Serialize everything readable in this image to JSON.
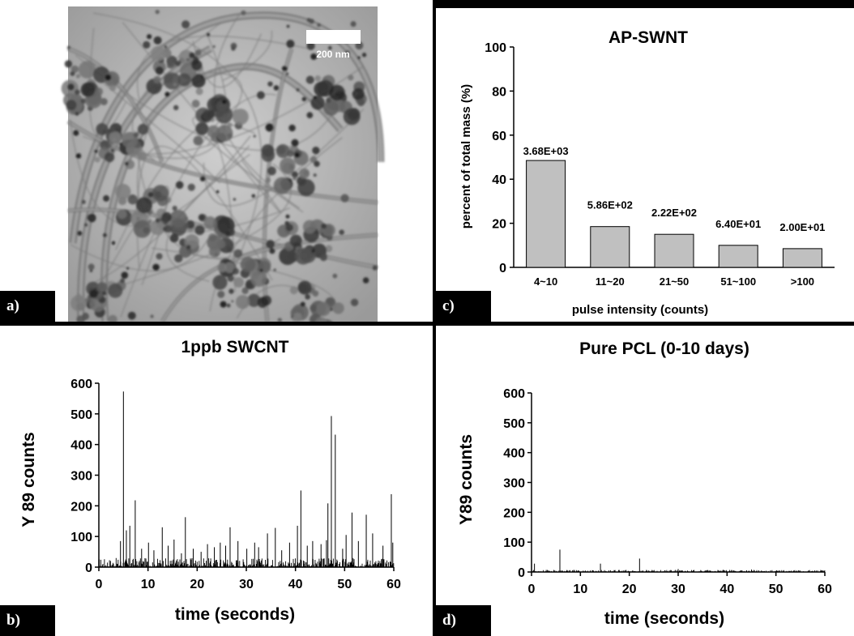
{
  "panels": {
    "a": {
      "tag": "a)",
      "scale_bar_label": "200 nm"
    },
    "b": {
      "tag": "b)"
    },
    "c": {
      "tag": "c)"
    },
    "d": {
      "tag": "d)"
    }
  },
  "chart_data": [
    {
      "id": "c",
      "type": "bar",
      "title": "AP-SWNT",
      "xlabel": "pulse intensity (counts)",
      "ylabel": "percent of total mass (%)",
      "ylim": [
        0,
        100
      ],
      "yticks": [
        0,
        20,
        40,
        60,
        80,
        100
      ],
      "categories": [
        "4~10",
        "11~20",
        "21~50",
        "51~100",
        ">100"
      ],
      "values": [
        48.5,
        18.5,
        15,
        10,
        8.5
      ],
      "data_labels": [
        "3.68E+03",
        "5.86E+02",
        "2.22E+02",
        "6.40E+01",
        "2.00E+01"
      ],
      "grid": false,
      "color": "#c0c0c0"
    },
    {
      "id": "b",
      "type": "line",
      "title": "1ppb SWCNT",
      "xlabel": "time (seconds)",
      "ylabel": "Y 89 counts",
      "xlim": [
        0,
        60
      ],
      "ylim": [
        0,
        600
      ],
      "xticks": [
        0,
        10,
        20,
        30,
        40,
        50,
        60
      ],
      "yticks": [
        0,
        100,
        200,
        300,
        400,
        500,
        600
      ],
      "grid": false,
      "baseline_max": 30,
      "spikes": [
        [
          4.4,
          85
        ],
        [
          5.0,
          573
        ],
        [
          5.6,
          120
        ],
        [
          6.3,
          135
        ],
        [
          7.4,
          218
        ],
        [
          8.7,
          60
        ],
        [
          10.1,
          80
        ],
        [
          11.2,
          55
        ],
        [
          12.9,
          130
        ],
        [
          14.1,
          70
        ],
        [
          15.3,
          90
        ],
        [
          16.8,
          45
        ],
        [
          17.6,
          163
        ],
        [
          19.2,
          60
        ],
        [
          20.8,
          50
        ],
        [
          22.1,
          75
        ],
        [
          23.5,
          65
        ],
        [
          24.7,
          80
        ],
        [
          25.8,
          70
        ],
        [
          26.7,
          130
        ],
        [
          28.3,
          85
        ],
        [
          30.1,
          60
        ],
        [
          31.7,
          80
        ],
        [
          32.5,
          65
        ],
        [
          34.3,
          110
        ],
        [
          35.9,
          128
        ],
        [
          37.2,
          55
        ],
        [
          38.8,
          80
        ],
        [
          40.4,
          135
        ],
        [
          41.1,
          250
        ],
        [
          42.4,
          70
        ],
        [
          43.5,
          85
        ],
        [
          45.2,
          75
        ],
        [
          46.3,
          88
        ],
        [
          46.6,
          208
        ],
        [
          47.3,
          493
        ],
        [
          48.1,
          432
        ],
        [
          49.6,
          60
        ],
        [
          50.3,
          105
        ],
        [
          51.5,
          178
        ],
        [
          52.8,
          85
        ],
        [
          54.4,
          171
        ],
        [
          55.7,
          110
        ],
        [
          57.8,
          70
        ],
        [
          59.5,
          238
        ],
        [
          59.8,
          80
        ]
      ]
    },
    {
      "id": "d",
      "type": "line",
      "title": "Pure PCL (0-10 days)",
      "xlabel": "time (seconds)",
      "ylabel": "Y89 counts",
      "xlim": [
        0,
        60
      ],
      "ylim": [
        0,
        600
      ],
      "xticks": [
        0,
        10,
        20,
        30,
        40,
        50,
        60
      ],
      "yticks": [
        0,
        100,
        200,
        300,
        400,
        500,
        600
      ],
      "grid": false,
      "baseline_max": 7,
      "spikes": [
        [
          0.6,
          28
        ],
        [
          5.8,
          75
        ],
        [
          14.1,
          28
        ],
        [
          22.1,
          45
        ],
        [
          30.0,
          10
        ],
        [
          45.0,
          8
        ]
      ]
    }
  ]
}
